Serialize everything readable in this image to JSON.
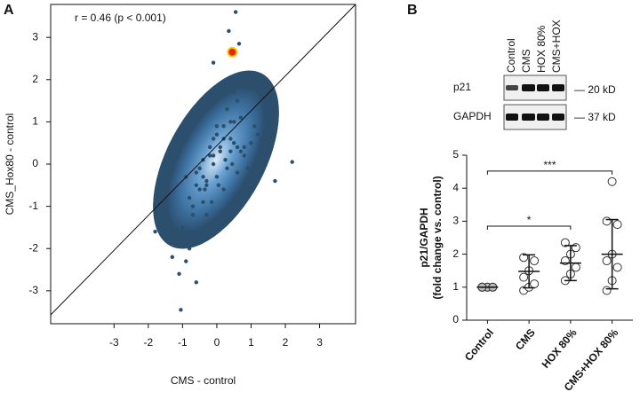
{
  "chart_data": [
    {
      "type": "scatter",
      "panel": "A",
      "annotation": "r = 0.46 (p < 0.001)",
      "x_label": "CMS - control",
      "y_label": "CMS_Hox80 - control",
      "xlim": [
        -4.85,
        4.05
      ],
      "ylim": [
        -3.78,
        3.78
      ],
      "xticks": [
        -3,
        -2,
        -1,
        0,
        1,
        2,
        3
      ],
      "yticks": [
        -3,
        -2,
        -1,
        0,
        1,
        2,
        3
      ],
      "color": "#2d4f6e",
      "x": [
        -1.8,
        -1.65,
        -1.05,
        2.2,
        1.7,
        0.55,
        0.35,
        0.65,
        -0.1,
        0.9,
        -1.3,
        -1.2,
        -1.1,
        -1.0,
        -0.9,
        -0.8,
        -0.7,
        -0.6,
        -0.5,
        -0.4,
        -0.3,
        -0.2,
        -0.1,
        0,
        0.1,
        0.2,
        0.3,
        0.4,
        0.5,
        0.6,
        0.7,
        0.8,
        0.9,
        1.0,
        1.1,
        1.2,
        1.3,
        -0.9,
        -0.7,
        -0.5,
        -0.3,
        -0.1,
        0.1,
        0.3,
        0.5,
        0.7,
        0.9,
        1.1,
        -0.8,
        -0.6,
        -0.4,
        -0.2,
        0,
        0.2,
        0.4,
        0.6,
        0.8,
        -0.6,
        -0.4,
        -0.2,
        0,
        0.2,
        0.4,
        0.6,
        -0.5,
        -0.3,
        -0.1,
        0.1,
        0.3,
        0.5,
        -0.35,
        -0.15,
        0.05,
        0.25,
        0.45
      ],
      "y": [
        -1.6,
        -0.95,
        -3.45,
        0.05,
        -0.4,
        3.6,
        3.15,
        2.85,
        2.4,
        1.8,
        -2.2,
        -1.9,
        -2.6,
        -1.5,
        -2.3,
        -2.0,
        -1.2,
        -2.8,
        -1.6,
        -0.9,
        -0.5,
        -1.4,
        0,
        -0.3,
        0.4,
        0.9,
        1.3,
        0.6,
        1.0,
        1.5,
        0.3,
        0.2,
        -0.1,
        0.5,
        0.9,
        0.7,
        0.6,
        -0.3,
        -1.0,
        -0.6,
        -1.2,
        0.6,
        1.6,
        2.0,
        1.7,
        1.1,
        -0.5,
        -0.2,
        -0.8,
        -0.5,
        -0.3,
        0.2,
        0.7,
        -0.6,
        0.3,
        -0.2,
        0.4,
        -0.2,
        0.1,
        0.4,
        0.9,
        0.6,
        1.0,
        0.4,
        -0.1,
        -0.4,
        0.2,
        0.3,
        -0.1,
        0.5,
        -0.6,
        -0.9,
        -0.5,
        0.1,
        0.0
      ],
      "highlight": {
        "x": 0.45,
        "y": 2.65,
        "color": "#e8261c"
      }
    },
    {
      "type": "dot",
      "panel": "B",
      "y_label": [
        "p21/GAPDH",
        "(fold change vs. control)"
      ],
      "categories": [
        "Control",
        "CMS",
        "HOX 80%",
        "CMS+HOX 80%"
      ],
      "ylim": [
        0,
        5
      ],
      "yticks": [
        0,
        1,
        2,
        3,
        4,
        5
      ],
      "groups": [
        {
          "points": [
            1,
            1,
            1,
            1,
            1,
            1,
            1
          ],
          "mean": 1,
          "sd": 0,
          "color": "#bbbbbb"
        },
        {
          "points": [
            0.9,
            1.0,
            1.1,
            1.3,
            1.5,
            1.8,
            1.9
          ],
          "mean": 1.48,
          "sd": 0.5,
          "color": "#ffffff"
        },
        {
          "points": [
            1.2,
            1.4,
            1.6,
            1.8,
            2.0,
            2.2,
            2.35
          ],
          "mean": 1.73,
          "sd": 0.53,
          "color": "#ffffff"
        },
        {
          "points": [
            0.9,
            1.2,
            1.6,
            1.8,
            2.0,
            2.9,
            3.0,
            4.2
          ],
          "mean": 2.0,
          "sd": 1.05,
          "color": "#ffffff"
        }
      ],
      "brackets": [
        {
          "from": 0,
          "to": 3,
          "y": 4.52,
          "label": "***"
        },
        {
          "from": 0,
          "to": 2,
          "y": 2.85,
          "label": "*"
        }
      ]
    }
  ],
  "blot": {
    "lanes": [
      "Control",
      "CMS",
      "HOX 80%",
      "CMS+HOX"
    ],
    "rows": [
      "p21",
      "GAPDH"
    ],
    "sizes": [
      "— 20 kD",
      "— 37 kD"
    ]
  }
}
